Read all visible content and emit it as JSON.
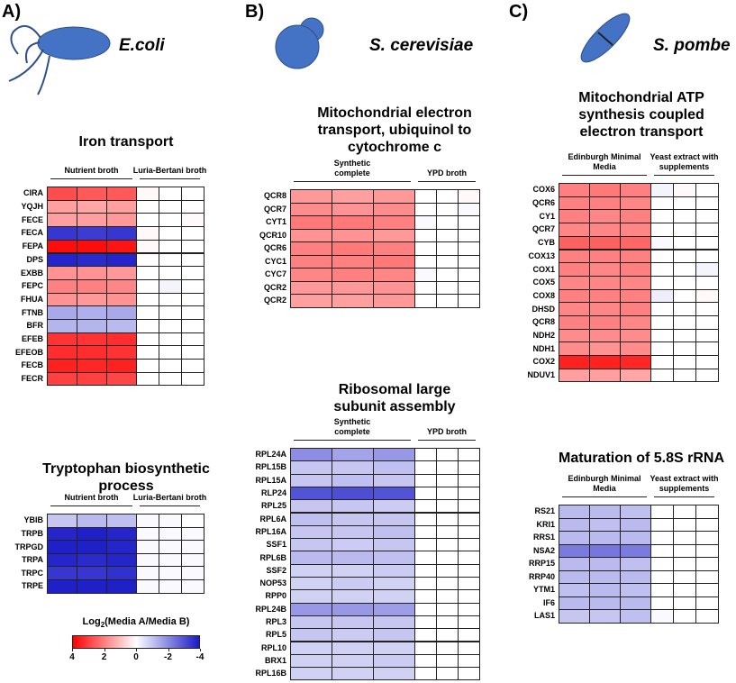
{
  "panels": [
    {
      "label": "A)",
      "organism": "E.coli"
    },
    {
      "label": "B)",
      "organism": "S. cerevisiae"
    },
    {
      "label": "C)",
      "organism": "S. pombe"
    }
  ],
  "chart_data": [
    {
      "type": "heatmap",
      "title": "Iron transport",
      "groups": [
        "Nutrient broth",
        "Luria-Bertani broth"
      ],
      "rows": [
        "CIRA",
        "YQJH",
        "FECE",
        "FECA",
        "FEPA",
        "DPS",
        "EXBB",
        "FEPC",
        "FHUA",
        "FTNB",
        "BFR",
        "EFEB",
        "EFEOB",
        "FECB",
        "FECR"
      ],
      "values": [
        [
          2.8,
          2.6,
          2.6,
          0.1,
          0,
          0
        ],
        [
          1.5,
          1.4,
          1.5,
          0,
          0,
          0
        ],
        [
          1.5,
          1.5,
          1.6,
          0,
          0,
          0.1
        ],
        [
          -3.5,
          -3.4,
          -3.5,
          0.1,
          0,
          0
        ],
        [
          3.8,
          3.8,
          3.7,
          0.1,
          0,
          0
        ],
        [
          -3.8,
          -3.7,
          -3.8,
          0,
          0,
          0
        ],
        [
          1.7,
          1.7,
          1.6,
          0,
          0,
          0
        ],
        [
          2.0,
          2.0,
          1.9,
          0,
          -0.2,
          0
        ],
        [
          1.7,
          1.6,
          1.7,
          0,
          0,
          0
        ],
        [
          -1.5,
          -1.4,
          -1.5,
          0,
          0,
          0
        ],
        [
          -1.3,
          -1.3,
          -1.2,
          0,
          0,
          0
        ],
        [
          3.2,
          3.2,
          3.3,
          0,
          0,
          0
        ],
        [
          3.3,
          3.3,
          3.2,
          0,
          0,
          0
        ],
        [
          3.5,
          3.4,
          3.5,
          0,
          0,
          0
        ],
        [
          3.0,
          3.0,
          2.9,
          0,
          0,
          0
        ]
      ]
    },
    {
      "type": "heatmap",
      "title": "Tryptophan biosynthetic process",
      "groups": [
        "Nutrient broth",
        "Luria-Bertani broth"
      ],
      "rows": [
        "YBIB",
        "TRPB",
        "TRPGD",
        "TRPA",
        "TRPC",
        "TRPE"
      ],
      "values": [
        [
          -1.0,
          -1.2,
          -1.1,
          -0.1,
          -0.1,
          0
        ],
        [
          -3.8,
          -3.9,
          -3.8,
          -0.1,
          -0.1,
          -0.1
        ],
        [
          -3.9,
          -3.9,
          -3.8,
          -0.1,
          -0.1,
          -0.1
        ],
        [
          -3.8,
          -3.7,
          -3.8,
          -0.1,
          -0.1,
          -0.1
        ],
        [
          -3.5,
          -3.5,
          -3.6,
          -0.1,
          -0.1,
          -0.1
        ],
        [
          -3.9,
          -3.9,
          -3.9,
          -0.1,
          -0.1,
          -0.1
        ]
      ]
    },
    {
      "type": "heatmap",
      "title": "Mitochondrial electron transport, ubiquinol to cytochrome c",
      "groups": [
        "Synthetic complete",
        "YPD broth"
      ],
      "rows": [
        "QCR8",
        "QCR7",
        "CYT1",
        "QCR10",
        "QCR6",
        "CYC1",
        "CYC7",
        "QCR2",
        "QCR2"
      ],
      "values": [
        [
          1.6,
          1.5,
          1.6,
          0,
          0,
          0.1
        ],
        [
          1.8,
          1.7,
          1.8,
          0,
          0,
          -0.1
        ],
        [
          2.1,
          2.1,
          2.0,
          -0.1,
          0,
          0
        ],
        [
          1.7,
          1.7,
          1.6,
          0,
          0,
          0
        ],
        [
          2.0,
          2.1,
          2.0,
          0,
          0,
          0
        ],
        [
          2.0,
          2.0,
          2.1,
          0,
          0,
          0
        ],
        [
          1.9,
          2.0,
          1.9,
          -0.1,
          0,
          0
        ],
        [
          1.6,
          1.6,
          1.7,
          0,
          0,
          0
        ],
        [
          1.5,
          1.5,
          1.6,
          0,
          0,
          0
        ]
      ]
    },
    {
      "type": "heatmap",
      "title": "Ribosomal large subunit assembly",
      "groups": [
        "Synthetic complete",
        "YPD broth"
      ],
      "rows": [
        "RPL24A",
        "RPL15B",
        "RPL15A",
        "RLP24",
        "RPL25",
        "RPL6A",
        "RPL16A",
        "SSF1",
        "RPL6B",
        "SSF2",
        "NOP53",
        "RPP0",
        "RPL24B",
        "RPL3",
        "RPL5",
        "RPL10",
        "BRX1",
        "RPL16B"
      ],
      "values": [
        [
          -2.0,
          -1.6,
          -1.8,
          0,
          0,
          0
        ],
        [
          -1.0,
          -1.0,
          -1.1,
          0,
          0,
          0
        ],
        [
          -1.0,
          -1.1,
          -1.0,
          0,
          0,
          0
        ],
        [
          -3.0,
          -3.1,
          -3.0,
          0,
          0,
          0
        ],
        [
          -1.0,
          -1.0,
          -0.9,
          0,
          0,
          0
        ],
        [
          -1.1,
          -1.0,
          -1.0,
          0,
          0,
          0
        ],
        [
          -1.0,
          -1.0,
          -1.1,
          0,
          0,
          0
        ],
        [
          -1.0,
          -0.9,
          -1.0,
          0,
          0,
          0
        ],
        [
          -1.2,
          -1.2,
          -1.1,
          0,
          0,
          0
        ],
        [
          -0.8,
          -0.8,
          -0.9,
          0,
          0,
          0
        ],
        [
          -0.8,
          -0.9,
          -0.8,
          0,
          0,
          0
        ],
        [
          -0.8,
          -0.8,
          -0.8,
          0,
          0,
          0
        ],
        [
          -1.8,
          -1.8,
          -1.7,
          0,
          0,
          0
        ],
        [
          -1.0,
          -1.0,
          -1.0,
          0,
          0,
          0
        ],
        [
          -1.0,
          -0.9,
          -1.0,
          0,
          0,
          0
        ],
        [
          -0.8,
          -0.8,
          -0.8,
          0,
          0,
          0
        ],
        [
          -0.8,
          -0.8,
          -0.9,
          0,
          0,
          0
        ],
        [
          -0.8,
          -0.8,
          -0.8,
          0,
          0,
          0
        ]
      ]
    },
    {
      "type": "heatmap",
      "title": "Mitochondrial ATP synthesis coupled electron transport",
      "groups": [
        "Edinburgh Minimal Media",
        "Yeast extract with supplements"
      ],
      "rows": [
        "COX6",
        "QCR6",
        "CY1",
        "QCR7",
        "CYB",
        "COX13",
        "COX1",
        "COX5",
        "COX8",
        "DHSD",
        "QCR8",
        "NDH2",
        "NDH1",
        "COX2",
        "NDUV1"
      ],
      "values": [
        [
          2.0,
          2.1,
          2.0,
          -0.2,
          0.1,
          0
        ],
        [
          2.0,
          2.0,
          1.9,
          0,
          0,
          0
        ],
        [
          2.0,
          1.9,
          2.0,
          0,
          0,
          0
        ],
        [
          1.9,
          1.9,
          1.9,
          0,
          0,
          0
        ],
        [
          2.5,
          2.5,
          2.4,
          -0.1,
          0,
          0
        ],
        [
          2.0,
          2.0,
          2.0,
          0,
          0,
          0
        ],
        [
          2.0,
          1.9,
          2.0,
          0,
          0,
          -0.2
        ],
        [
          1.9,
          1.9,
          1.9,
          0,
          0,
          0
        ],
        [
          2.0,
          2.0,
          2.0,
          -0.3,
          0,
          0.1
        ],
        [
          1.9,
          1.9,
          2.0,
          0,
          0,
          0
        ],
        [
          2.0,
          2.0,
          1.9,
          0,
          0,
          0
        ],
        [
          1.8,
          1.8,
          1.8,
          0,
          0,
          0
        ],
        [
          1.8,
          1.7,
          1.8,
          0,
          0,
          0
        ],
        [
          3.5,
          3.5,
          3.4,
          0,
          0,
          0
        ],
        [
          1.5,
          1.5,
          1.4,
          0,
          0,
          0
        ]
      ]
    },
    {
      "type": "heatmap",
      "title": "Maturation of 5.8S rRNA",
      "groups": [
        "Edinburgh Minimal Media",
        "Yeast extract with supplements"
      ],
      "rows": [
        "RS21",
        "KRI1",
        "RRS1",
        "NSA2",
        "RRP15",
        "RRP40",
        "YTM1",
        "IF6",
        "LAS1"
      ],
      "values": [
        [
          -1.2,
          -1.2,
          -1.1,
          0,
          0,
          0
        ],
        [
          -1.2,
          -1.1,
          -1.2,
          0,
          0,
          0
        ],
        [
          -1.2,
          -1.2,
          -1.2,
          0,
          0,
          0
        ],
        [
          -2.3,
          -2.4,
          -2.3,
          0,
          0,
          0
        ],
        [
          -1.2,
          -1.2,
          -1.1,
          0,
          0,
          0
        ],
        [
          -1.2,
          -1.2,
          -1.2,
          0,
          0,
          0
        ],
        [
          -1.1,
          -1.2,
          -1.1,
          0,
          0,
          0
        ],
        [
          -1.2,
          -1.2,
          -1.2,
          0,
          0,
          0
        ],
        [
          -1.0,
          -1.0,
          -1.1,
          -0.1,
          0,
          0
        ]
      ]
    }
  ],
  "colorbar": {
    "title": [
      "Log",
      "2",
      "(Media A/Media B)"
    ],
    "lim": [
      4,
      -4
    ],
    "ticks": [
      4,
      2,
      0,
      -2,
      -4
    ],
    "colors": [
      "#ff0000",
      "#ffffff",
      "#1a1ac8"
    ]
  }
}
